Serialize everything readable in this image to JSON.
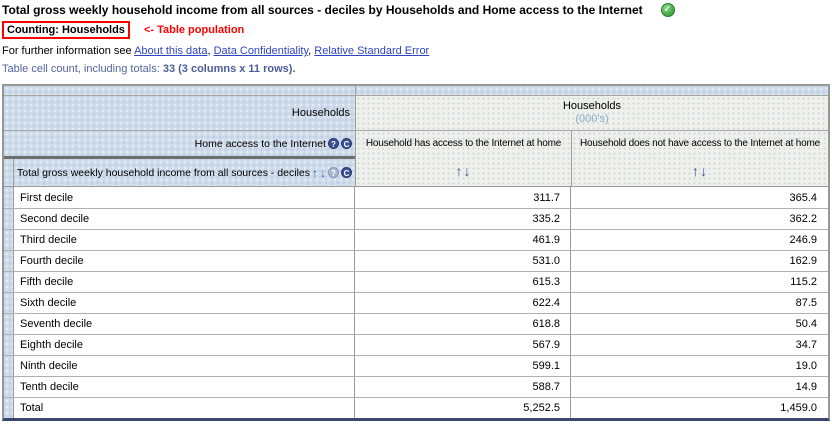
{
  "header": {
    "title": "Total gross weekly household income from all sources - deciles by Households and Home access to the Internet",
    "counting_label": "Counting: Households",
    "population_note": "<- Table population",
    "info_prefix": "For further information see ",
    "links": {
      "about": "About this data",
      "confidentiality": "Data Confidentiality",
      "rse": "Relative Standard Error"
    },
    "separator": ", ",
    "cell_count_label": "Table cell count, including totals: ",
    "cell_count_value": "33 (3 columns x 11 rows)."
  },
  "icons": {
    "check": "✓",
    "sort_up": "↑",
    "sort_down": "↓",
    "sort_pair": "↑↓",
    "help": "?",
    "rotate": "C"
  },
  "table": {
    "corner_label": "Households",
    "measure_label": "Households",
    "measure_unit": "(000's)",
    "column_dimension_label": "Home access to the Internet",
    "row_dimension_label": "Total gross weekly household income from all sources - deciles",
    "columns": {
      "c1": "Household has access to the Internet at home",
      "c2": "Household does not have access to the Internet at home"
    },
    "rows": [
      {
        "label": "First decile",
        "c1": "311.7",
        "c2": "365.4"
      },
      {
        "label": "Second decile",
        "c1": "335.2",
        "c2": "362.2"
      },
      {
        "label": "Third decile",
        "c1": "461.9",
        "c2": "246.9"
      },
      {
        "label": "Fourth decile",
        "c1": "531.0",
        "c2": "162.9"
      },
      {
        "label": "Fifth decile",
        "c1": "615.3",
        "c2": "115.2"
      },
      {
        "label": "Sixth decile",
        "c1": "622.4",
        "c2": "87.5"
      },
      {
        "label": "Seventh decile",
        "c1": "618.8",
        "c2": "50.4"
      },
      {
        "label": "Eighth decile",
        "c1": "567.9",
        "c2": "34.7"
      },
      {
        "label": "Ninth decile",
        "c1": "599.1",
        "c2": "19.0"
      },
      {
        "label": "Tenth decile",
        "c1": "588.7",
        "c2": "14.9"
      },
      {
        "label": "Total",
        "c1": "5,252.5",
        "c2": "1,459.0"
      }
    ]
  },
  "colors": {
    "alert_red": "#ff0000",
    "link_blue": "#2f45c0",
    "count_blue": "#54649d",
    "arrow_blue": "#3a56a0",
    "header_blue_bg": "#cedbeb",
    "header_beige_bg": "#eef0e9",
    "status_green": "#3fa53f"
  }
}
